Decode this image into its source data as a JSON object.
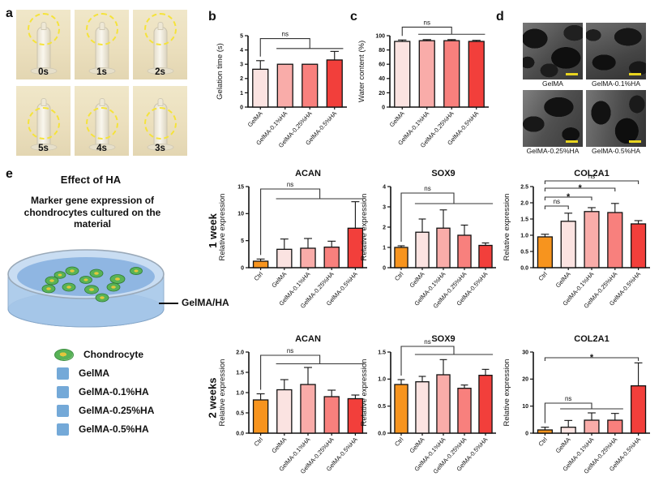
{
  "figure": {
    "panels": {
      "a": {
        "letter": "a",
        "photos": [
          {
            "label": "0s"
          },
          {
            "label": "1s"
          },
          {
            "label": "2s"
          },
          {
            "label": "5s"
          },
          {
            "label": "4s"
          },
          {
            "label": "3s"
          }
        ]
      },
      "b": {
        "letter": "b"
      },
      "c": {
        "letter": "c"
      },
      "d": {
        "letter": "d",
        "images": [
          {
            "label": "GelMA"
          },
          {
            "label": "GelMA-0.1%HA"
          },
          {
            "label": "GelMA-0.25%HA"
          },
          {
            "label": "GelMA-0.5%HA"
          }
        ]
      },
      "e": {
        "letter": "e",
        "title": "Effect of HA",
        "description": "Marker gene expression of chondrocytes cultured on the material",
        "dish_label": "GelMA/HA",
        "legend": [
          {
            "icon": "chondrocyte-icon",
            "label": "Chondrocyte"
          },
          {
            "icon": "blue-square",
            "label": "GelMA"
          },
          {
            "icon": "blue-square",
            "label": "GelMA-0.1%HA"
          },
          {
            "icon": "blue-square",
            "label": "GelMA-0.25%HA"
          },
          {
            "icon": "blue-square",
            "label": "GelMA-0.5%HA"
          }
        ]
      }
    },
    "row_labels": {
      "week1": "1 week",
      "week2": "2 weeks"
    }
  },
  "colors": {
    "ctrl_orange": "#F7941E",
    "gelma_pink": "#FBE3E1",
    "ha01_pink": "#F9ACA9",
    "ha025_salmon": "#F8807D",
    "ha05_red": "#F23F3B",
    "legend_blue": "#74A9D8",
    "scalebar_yellow": "#E8D41F",
    "dash_circle_yellow": "#F5E33A"
  },
  "chart_data": [
    {
      "id": "gelation",
      "type": "bar",
      "panel": "b",
      "title": "",
      "ylabel": "Gelation time (s)",
      "ymax": 5,
      "ytick_vals": [
        0,
        1,
        2,
        3,
        4,
        5
      ],
      "ytick_labels": [
        "0",
        "1",
        "2",
        "3",
        "4",
        "5"
      ],
      "categories": [
        "GelMA",
        "GelMA-0.1%HA",
        "GelMA-0.25%HA",
        "GelMA-0.5%HA"
      ],
      "values": [
        2.65,
        3.0,
        3.0,
        3.3
      ],
      "errors": [
        0.6,
        0,
        0,
        0.6
      ],
      "colors": [
        "#FBE3E1",
        "#F9ACA9",
        "#F8807D",
        "#F23F3B"
      ],
      "sig": [
        {
          "type": "bracket",
          "label": "ns",
          "from": 0,
          "span": [
            1,
            3
          ],
          "h1": 0.96,
          "h2": 0.82
        }
      ]
    },
    {
      "id": "water",
      "type": "bar",
      "panel": "c",
      "title": "",
      "ylabel": "Water content (%)",
      "ymax": 100,
      "ytick_vals": [
        0,
        20,
        40,
        60,
        80,
        100
      ],
      "ytick_labels": [
        "0",
        "20",
        "40",
        "60",
        "80",
        "100"
      ],
      "categories": [
        "GelMA",
        "GelMA-0.1%HA",
        "GelMA-0.25%HA",
        "GelMA-0.5%HA"
      ],
      "values": [
        92,
        93,
        93,
        92
      ],
      "errors": [
        2,
        1.5,
        1.5,
        1.5
      ],
      "colors": [
        "#FBE3E1",
        "#F9ACA9",
        "#F8807D",
        "#F23F3B"
      ],
      "sig": [
        {
          "type": "bracket",
          "label": "ns",
          "from": 0,
          "span": [
            1,
            3
          ],
          "h1": 1.12,
          "h2": 1.02
        }
      ]
    },
    {
      "id": "acan_1w",
      "type": "bar",
      "panel": "e-week1",
      "title": "ACAN",
      "ylabel": "Relative expression",
      "ymax": 15,
      "ytick_vals": [
        0,
        5,
        10,
        15
      ],
      "ytick_labels": [
        "0",
        "5",
        "10",
        "15"
      ],
      "categories": [
        "Ctrl",
        "GelMA",
        "GelMA-0.1%HA",
        "GelMA-0.25%HA",
        "GelMA-0.5%HA"
      ],
      "values": [
        1.2,
        3.4,
        3.6,
        3.8,
        7.3
      ],
      "errors": [
        0.4,
        1.9,
        1.8,
        1.1,
        4.9
      ],
      "colors": [
        "#F7941E",
        "#FBE3E1",
        "#F9ACA9",
        "#F8807D",
        "#F23F3B"
      ],
      "sig": [
        {
          "type": "bracket",
          "label": "ns",
          "from": 0,
          "span": [
            1,
            4
          ],
          "h1": 0.97,
          "h2": 0.85
        }
      ]
    },
    {
      "id": "sox9_1w",
      "type": "bar",
      "panel": "e-week1",
      "title": "SOX9",
      "ylabel": "Relative expression",
      "ymax": 4,
      "ytick_vals": [
        0,
        1,
        2,
        3,
        4
      ],
      "ytick_labels": [
        "0",
        "1",
        "2",
        "3",
        "4"
      ],
      "categories": [
        "Ctrl",
        "GelMA",
        "GelMA-0.1%HA",
        "GelMA-0.25%HA",
        "GelMA-0.5%HA"
      ],
      "values": [
        1.0,
        1.75,
        1.95,
        1.6,
        1.1
      ],
      "errors": [
        0.08,
        0.65,
        0.9,
        0.5,
        0.12
      ],
      "colors": [
        "#F7941E",
        "#FBE3E1",
        "#F9ACA9",
        "#F8807D",
        "#F23F3B"
      ],
      "sig": [
        {
          "type": "bracket",
          "label": "ns",
          "from": 0,
          "span": [
            1,
            4
          ],
          "h1": 0.92,
          "h2": 0.79
        }
      ]
    },
    {
      "id": "col2a1_1w",
      "type": "bar",
      "panel": "e-week1",
      "title": "COL2A1",
      "ylabel": "Relative expression",
      "ymax": 2.5,
      "ytick_vals": [
        0,
        0.5,
        1.0,
        1.5,
        2.0,
        2.5
      ],
      "ytick_labels": [
        "0.0",
        "0.5",
        "1.0",
        "1.5",
        "2.0",
        "2.5"
      ],
      "categories": [
        "Ctrl",
        "GelMA",
        "GelMA-0.1%HA",
        "GelMA-0.25%HA",
        "GelMA-0.5%HA"
      ],
      "values": [
        0.95,
        1.43,
        1.73,
        1.7,
        1.35
      ],
      "errors": [
        0.08,
        0.25,
        0.12,
        0.28,
        0.1
      ],
      "colors": [
        "#F7941E",
        "#FBE3E1",
        "#F9ACA9",
        "#F8807D",
        "#F23F3B"
      ],
      "sig": [
        {
          "type": "line",
          "label": "ns",
          "from": 0,
          "to": 1,
          "h": 0.76
        },
        {
          "type": "line",
          "label": "*",
          "from": 0,
          "to": 2,
          "h": 0.87
        },
        {
          "type": "line",
          "label": "*",
          "from": 0,
          "to": 3,
          "h": 0.98
        },
        {
          "type": "line",
          "label": "ns",
          "from": 0,
          "to": 4,
          "h": 1.07
        }
      ]
    },
    {
      "id": "acan_2w",
      "type": "bar",
      "panel": "e-week2",
      "title": "ACAN",
      "ylabel": "Relative expression",
      "ymax": 2.0,
      "ytick_vals": [
        0,
        0.5,
        1.0,
        1.5,
        2.0
      ],
      "ytick_labels": [
        "0.0",
        "0.5",
        "1.0",
        "1.5",
        "2.0"
      ],
      "categories": [
        "Ctrl",
        "GelMA",
        "GelMA-0.1%HA",
        "GelMA-0.25%HA",
        "GelMA-0.5%HA"
      ],
      "values": [
        0.82,
        1.07,
        1.2,
        0.9,
        0.85
      ],
      "errors": [
        0.15,
        0.25,
        0.42,
        0.16,
        0.09
      ],
      "colors": [
        "#F7941E",
        "#FBE3E1",
        "#F9ACA9",
        "#F8807D",
        "#F23F3B"
      ],
      "sig": [
        {
          "type": "bracket",
          "label": "ns",
          "from": 0,
          "span": [
            1,
            4
          ],
          "h1": 0.96,
          "h2": 0.855
        }
      ]
    },
    {
      "id": "sox9_2w",
      "type": "bar",
      "panel": "e-week2",
      "title": "SOX9",
      "ylabel": "Relative expression",
      "ymax": 1.5,
      "ytick_vals": [
        0,
        0.5,
        1.0,
        1.5
      ],
      "ytick_labels": [
        "0.0",
        "0.5",
        "1.0",
        "1.5"
      ],
      "categories": [
        "Ctrl",
        "GelMA",
        "GelMA-0.1%HA",
        "GelMA-0.25%HA",
        "GelMA-0.5%HA"
      ],
      "values": [
        0.9,
        0.95,
        1.08,
        0.83,
        1.07
      ],
      "errors": [
        0.09,
        0.1,
        0.28,
        0.06,
        0.11
      ],
      "colors": [
        "#F7941E",
        "#FBE3E1",
        "#F9ACA9",
        "#F8807D",
        "#F23F3B"
      ],
      "sig": [
        {
          "type": "bracket",
          "label": "ns",
          "from": 0,
          "span": [
            1,
            4
          ],
          "h1": 1.07,
          "h2": 0.97
        }
      ]
    },
    {
      "id": "col2a1_2w",
      "type": "bar",
      "panel": "e-week2",
      "title": "COL2A1",
      "ylabel": "Relative expression",
      "ymax": 30,
      "ytick_vals": [
        0,
        10,
        20,
        30
      ],
      "ytick_labels": [
        "0",
        "10",
        "20",
        "30"
      ],
      "categories": [
        "Ctrl",
        "GelMA",
        "GelMA-0.1%HA",
        "GelMA-0.25%HA",
        "GelMA-0.5%HA"
      ],
      "values": [
        1.2,
        2.2,
        4.8,
        4.8,
        17.5
      ],
      "errors": [
        1.0,
        2.5,
        2.7,
        2.5,
        8.5
      ],
      "colors": [
        "#F7941E",
        "#FBE3E1",
        "#F9ACA9",
        "#F8807D",
        "#F23F3B"
      ],
      "sig": [
        {
          "type": "bracket",
          "label": "ns",
          "from": 0,
          "span": [
            1,
            3
          ],
          "h1": 0.37,
          "h2": 0.3
        },
        {
          "type": "line",
          "label": "*",
          "from": 0,
          "to": 4,
          "h": 0.93
        }
      ]
    }
  ]
}
